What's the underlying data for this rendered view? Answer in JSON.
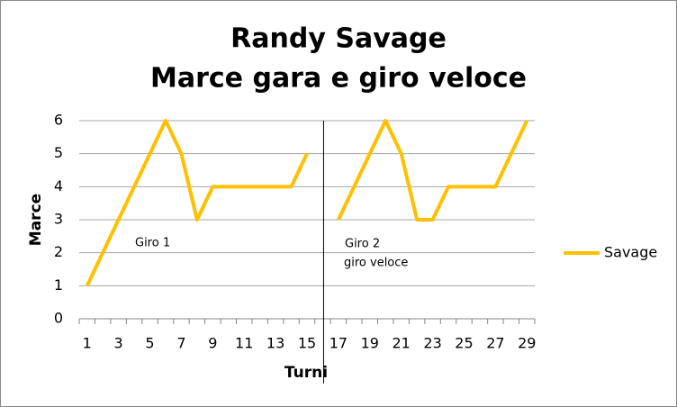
{
  "chart_data": {
    "type": "line",
    "title": [
      "Randy Savage",
      "Marce gara e giro veloce"
    ],
    "x_label": "Turni",
    "y_label": "Marce",
    "categories": [
      1,
      null,
      3,
      null,
      5,
      null,
      7,
      null,
      9,
      null,
      11,
      null,
      13,
      null,
      15,
      null,
      17,
      null,
      19,
      null,
      21,
      null,
      23,
      null,
      25,
      null,
      27,
      null,
      29
    ],
    "series": [
      {
        "name": "Savage",
        "color": "#ffc000",
        "values": [
          1,
          2,
          3,
          4,
          5,
          6,
          5,
          3,
          4,
          4,
          4,
          4,
          4,
          4,
          5,
          null,
          3,
          4,
          5,
          6,
          5,
          3,
          3,
          4,
          4,
          4,
          4,
          5,
          6
        ]
      }
    ],
    "annotations": [
      "Giro 1",
      "Giro 2",
      "giro veloce"
    ],
    "ylim": [
      0,
      6
    ],
    "yticks": [
      0,
      1,
      2,
      3,
      4,
      5,
      6
    ],
    "grid": true,
    "legend": "right"
  }
}
